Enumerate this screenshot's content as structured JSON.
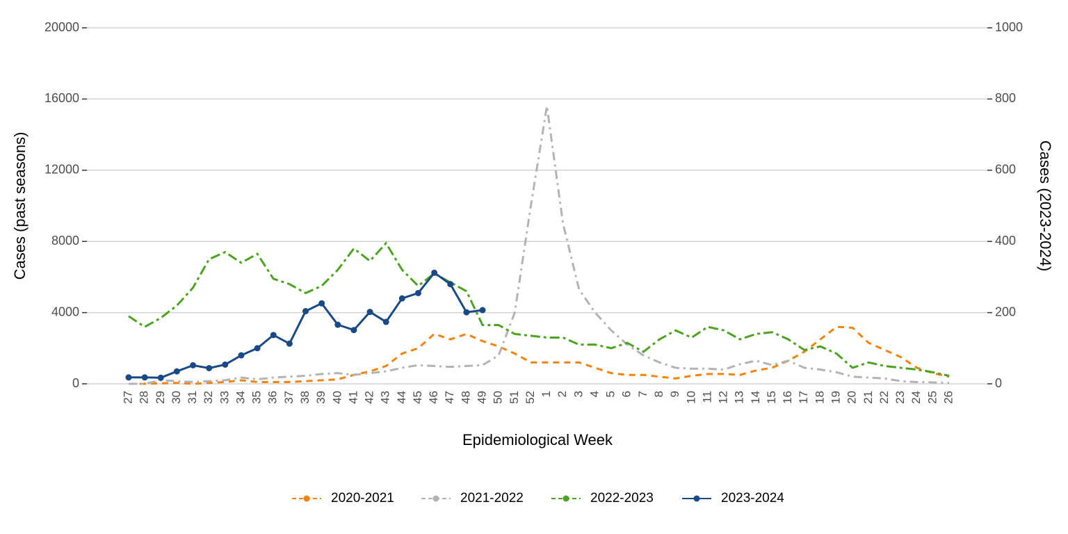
{
  "chart_data": {
    "type": "line",
    "x_label": "Epidemiological Week",
    "y_label": "Cases (past seasons)",
    "y2_label": "Cases (2023-2024)",
    "categories": [
      "27",
      "28",
      "29",
      "30",
      "31",
      "32",
      "33",
      "34",
      "35",
      "36",
      "37",
      "38",
      "39",
      "40",
      "41",
      "42",
      "43",
      "44",
      "45",
      "46",
      "47",
      "48",
      "49",
      "50",
      "51",
      "52",
      "1",
      "2",
      "3",
      "4",
      "5",
      "6",
      "7",
      "8",
      "9",
      "10",
      "11",
      "12",
      "13",
      "14",
      "15",
      "16",
      "17",
      "18",
      "19",
      "20",
      "21",
      "22",
      "23",
      "24",
      "25",
      "26"
    ],
    "ylim": [
      0,
      20000
    ],
    "yticks": [
      0,
      4000,
      8000,
      12000,
      16000,
      20000
    ],
    "y2lim": [
      0,
      1000
    ],
    "y2ticks": [
      0,
      200,
      400,
      600,
      800,
      1000
    ],
    "grid": true,
    "legend": "bottom",
    "series": [
      {
        "name": "2020-2021",
        "color": "#f5820b",
        "values": [
          0,
          0,
          30,
          50,
          0,
          50,
          100,
          200,
          100,
          100,
          100,
          150,
          200,
          250,
          500,
          700,
          1000,
          1700,
          2000,
          2800,
          2500,
          2800,
          2400,
          2100,
          1700,
          1200,
          1200,
          1200,
          1200,
          900,
          600,
          500,
          500,
          400,
          300,
          450,
          550,
          550,
          500,
          750,
          900,
          1300,
          1800,
          2500,
          3200,
          3150,
          2300,
          1900,
          1500,
          900,
          600,
          400
        ]
      },
      {
        "name": "2021-2022",
        "color": "#b3b3b3",
        "values": [
          0,
          0,
          200,
          150,
          100,
          150,
          200,
          350,
          250,
          350,
          400,
          450,
          550,
          600,
          500,
          600,
          700,
          900,
          1050,
          1000,
          950,
          1000,
          1050,
          1600,
          4000,
          10000,
          15600,
          9000,
          5300,
          4000,
          3000,
          2200,
          1600,
          1200,
          900,
          850,
          850,
          800,
          1100,
          1300,
          1050,
          1300,
          900,
          800,
          650,
          400,
          350,
          300,
          150,
          100,
          80,
          50
        ]
      },
      {
        "name": "2022-2023",
        "color": "#4da31f",
        "values": [
          3800,
          3200,
          3700,
          4400,
          5400,
          7000,
          7400,
          6800,
          7300,
          5900,
          5600,
          5100,
          5500,
          6400,
          7600,
          6900,
          7900,
          6400,
          5500,
          6200,
          5700,
          5200,
          3300,
          3300,
          2800,
          2700,
          2600,
          2600,
          2200,
          2200,
          2000,
          2300,
          1800,
          2500,
          3000,
          2600,
          3200,
          3000,
          2500,
          2800,
          2900,
          2500,
          1900,
          2100,
          1700,
          900,
          1200,
          1000,
          900,
          800,
          650,
          450
        ]
      },
      {
        "name": "2023-2024",
        "color": "#1a4a85",
        "axis": "y2",
        "values": [
          18,
          18,
          17,
          35,
          52,
          44,
          54,
          80,
          100,
          137,
          113,
          204,
          226,
          166,
          151,
          202,
          174,
          240,
          255,
          312,
          280,
          201,
          207,
          null,
          null,
          null,
          null,
          null,
          null,
          null,
          null,
          null,
          null,
          null,
          null,
          null,
          null,
          null,
          null,
          null,
          null,
          null,
          null,
          null,
          null,
          null,
          null,
          null,
          null,
          null,
          null,
          null
        ]
      }
    ]
  }
}
